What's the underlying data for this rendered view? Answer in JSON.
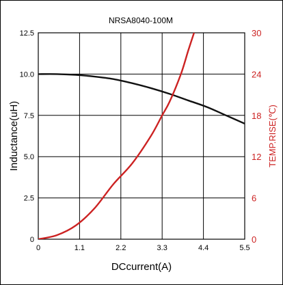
{
  "chart_data": {
    "type": "line",
    "title": "NRSA8040-100M",
    "xlabel": "DCcurrent(A)",
    "ylabel_left": "Inductance(uH)",
    "ylabel_right": "TEMP.RISE(℃)",
    "xlim": [
      0,
      5.5
    ],
    "ylim_left": [
      0,
      12.5
    ],
    "ylim_right": [
      0,
      30
    ],
    "x_ticks": [
      "0",
      "1.1",
      "2.2",
      "3.3",
      "4.4",
      "5.5"
    ],
    "y_ticks_left": [
      "0",
      "2.5",
      "5.0",
      "7.5",
      "10.0",
      "12.5"
    ],
    "y_ticks_right": [
      "0",
      "6",
      "12",
      "18",
      "24",
      "30"
    ],
    "grid": true,
    "colors": {
      "inductance": "#111111",
      "temp_rise": "#cc2222",
      "right_axis": "#cc2222"
    },
    "series": [
      {
        "axis": "left",
        "x": [
          0,
          0.5,
          1.0,
          1.5,
          2.0,
          2.5,
          3.0,
          3.5,
          4.0,
          4.5,
          5.0,
          5.5
        ],
        "values": [
          10.0,
          10.0,
          9.95,
          9.85,
          9.7,
          9.45,
          9.15,
          8.8,
          8.4,
          8.0,
          7.5,
          7.0
        ]
      },
      {
        "axis": "right",
        "x": [
          0,
          0.5,
          1.0,
          1.5,
          2.0,
          2.5,
          3.0,
          3.3,
          3.5,
          3.8,
          4.0,
          4.15
        ],
        "values": [
          0,
          0.6,
          2.0,
          4.5,
          8.0,
          11.0,
          15.0,
          18.0,
          20.0,
          24.0,
          27.5,
          30.0
        ]
      }
    ]
  }
}
